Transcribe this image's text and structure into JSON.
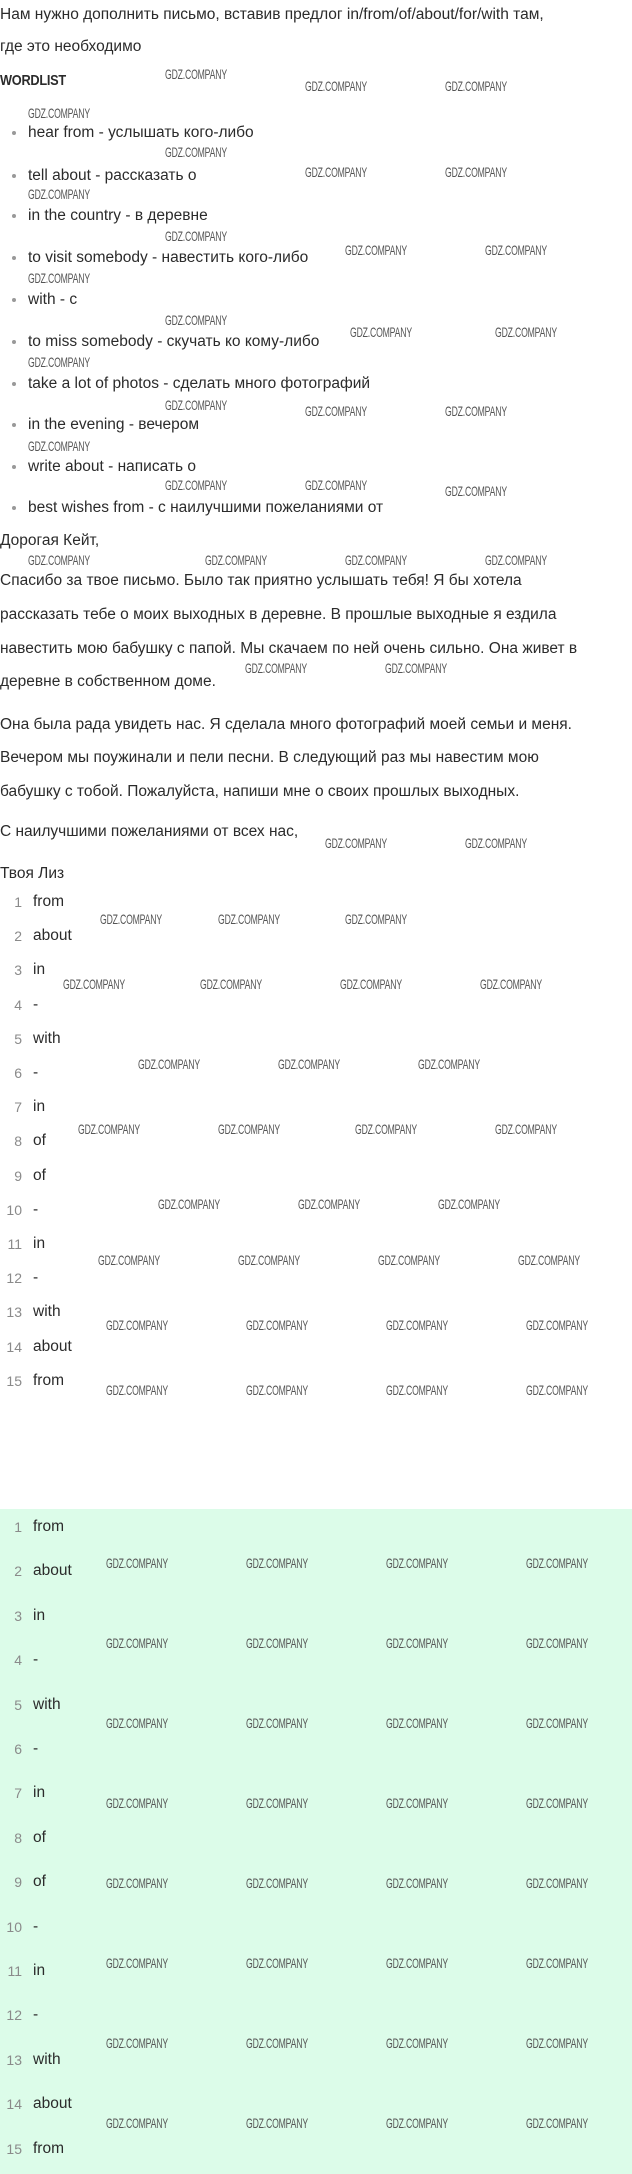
{
  "task": {
    "line1": "Нам нужно дополнить письмо, вставив предлог in/from/of/about/for/with там,",
    "line2": "где это необходимо"
  },
  "wordlist": {
    "title": "WORDLIST",
    "items": [
      "hear from - услышать кого-либо",
      "tell about - рассказать о",
      "in the country - в деревне",
      "to visit somebody - навестить кого-либо",
      "with - с",
      "to miss somebody - скучать ко кому-либо",
      "take a lot of photos - сделать много фотографий",
      "in the evening - вечером",
      "write about - написать о",
      "best wishes from - с наилучшими пожеланиями от"
    ]
  },
  "letter": {
    "lines": [
      "Дорогая Кейт,",
      "Спасибо за твое письмо. Было так приятно услышать тебя! Я бы хотела",
      "рассказать тебе о моих выходных в деревне. В прошлые выходные я ездила",
      "навестить мою бабушку с папой. Мы скачаем по ней очень сильно. Она живет в",
      "деревне в собственном доме.",
      "Она была рада увидеть нас. Я сделала много фотографий моей семьи и меня.",
      "Вечером мы поужинали и пели песни. В следующий раз мы навестим мою",
      "бабушку с тобой. Пожалуйста, напиши мне о своих прошлых выходных.",
      "С наилучшими пожеланиями от всех нас,",
      "Твоя Лиз"
    ]
  },
  "answers": [
    {
      "n": "1",
      "v": "from"
    },
    {
      "n": "2",
      "v": "about"
    },
    {
      "n": "3",
      "v": "in"
    },
    {
      "n": "4",
      "v": "-"
    },
    {
      "n": "5",
      "v": "with"
    },
    {
      "n": "6",
      "v": "-"
    },
    {
      "n": "7",
      "v": "in"
    },
    {
      "n": "8",
      "v": "of"
    },
    {
      "n": "9",
      "v": "of"
    },
    {
      "n": "10",
      "v": "-"
    },
    {
      "n": "11",
      "v": "in"
    },
    {
      "n": "12",
      "v": "-"
    },
    {
      "n": "13",
      "v": "with"
    },
    {
      "n": "14",
      "v": "about"
    },
    {
      "n": "15",
      "v": "from"
    }
  ],
  "answers_highlighted": [
    {
      "n": "1",
      "v": "from"
    },
    {
      "n": "2",
      "v": "about"
    },
    {
      "n": "3",
      "v": "in"
    },
    {
      "n": "4",
      "v": "-"
    },
    {
      "n": "5",
      "v": "with"
    },
    {
      "n": "6",
      "v": "-"
    },
    {
      "n": "7",
      "v": "in"
    },
    {
      "n": "8",
      "v": "of"
    },
    {
      "n": "9",
      "v": "of"
    },
    {
      "n": "10",
      "v": "-"
    },
    {
      "n": "11",
      "v": "in"
    },
    {
      "n": "12",
      "v": "-"
    },
    {
      "n": "13",
      "v": "with"
    },
    {
      "n": "14",
      "v": "about"
    },
    {
      "n": "15",
      "v": "from"
    }
  ],
  "colors": {
    "highlight_bg": "#dcfce9",
    "text": "#2b2b2b",
    "number": "#8a8a8a"
  },
  "watermark": "GDZ.COMPANY"
}
